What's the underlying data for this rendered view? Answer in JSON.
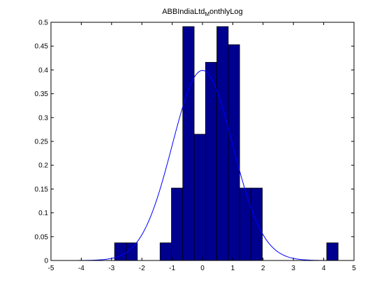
{
  "chart_data": {
    "type": "bar",
    "title": "ABBIndiaLtd_MonthlyLog",
    "title_parts": {
      "before": "ABBIndiaLtd",
      "subscript": "M",
      "after": "onthlyLog"
    },
    "xlabel": "",
    "ylabel": "",
    "xlim": [
      -5,
      5
    ],
    "ylim": [
      0,
      0.5
    ],
    "xticks": [
      -5,
      -4,
      -3,
      -2,
      -1,
      0,
      1,
      2,
      3,
      4,
      5
    ],
    "xtick_labels": [
      "-5",
      "-4",
      "-3",
      "-2",
      "-1",
      "0",
      "1",
      "2",
      "3",
      "4",
      "5"
    ],
    "yticks": [
      0,
      0.05,
      0.1,
      0.15,
      0.2,
      0.25,
      0.3,
      0.35,
      0.4,
      0.45,
      0.5
    ],
    "ytick_labels": [
      "0",
      "0.05",
      "0.1",
      "0.15",
      "0.2",
      "0.25",
      "0.3",
      "0.35",
      "0.4",
      "0.45",
      "0.5"
    ],
    "grid": false,
    "histogram": {
      "bin_width": 0.375,
      "bars": [
        {
          "x0": -2.9,
          "x1": -2.525,
          "value": 0.037
        },
        {
          "x0": -2.525,
          "x1": -2.15,
          "value": 0.037
        },
        {
          "x0": -1.4,
          "x1": -1.025,
          "value": 0.037
        },
        {
          "x0": -1.025,
          "x1": -0.65,
          "value": 0.152
        },
        {
          "x0": -0.65,
          "x1": -0.275,
          "value": 0.491
        },
        {
          "x0": -0.275,
          "x1": 0.1,
          "value": 0.265
        },
        {
          "x0": 0.1,
          "x1": 0.475,
          "value": 0.416
        },
        {
          "x0": 0.475,
          "x1": 0.85,
          "value": 0.491
        },
        {
          "x0": 0.85,
          "x1": 1.225,
          "value": 0.453
        },
        {
          "x0": 1.225,
          "x1": 1.6,
          "value": 0.152
        },
        {
          "x0": 1.6,
          "x1": 1.975,
          "value": 0.152
        },
        {
          "x0": 4.1,
          "x1": 4.475,
          "value": 0.037
        }
      ]
    },
    "curve": {
      "type": "normal-pdf",
      "mean": 0,
      "sd": 1,
      "x_range": [
        -5,
        5
      ]
    },
    "colors": {
      "bar_fill": "#00008F",
      "bar_edge": "#000000",
      "curve": "#0000FF",
      "axes": "#000000",
      "background": "#FFFFFF"
    }
  }
}
